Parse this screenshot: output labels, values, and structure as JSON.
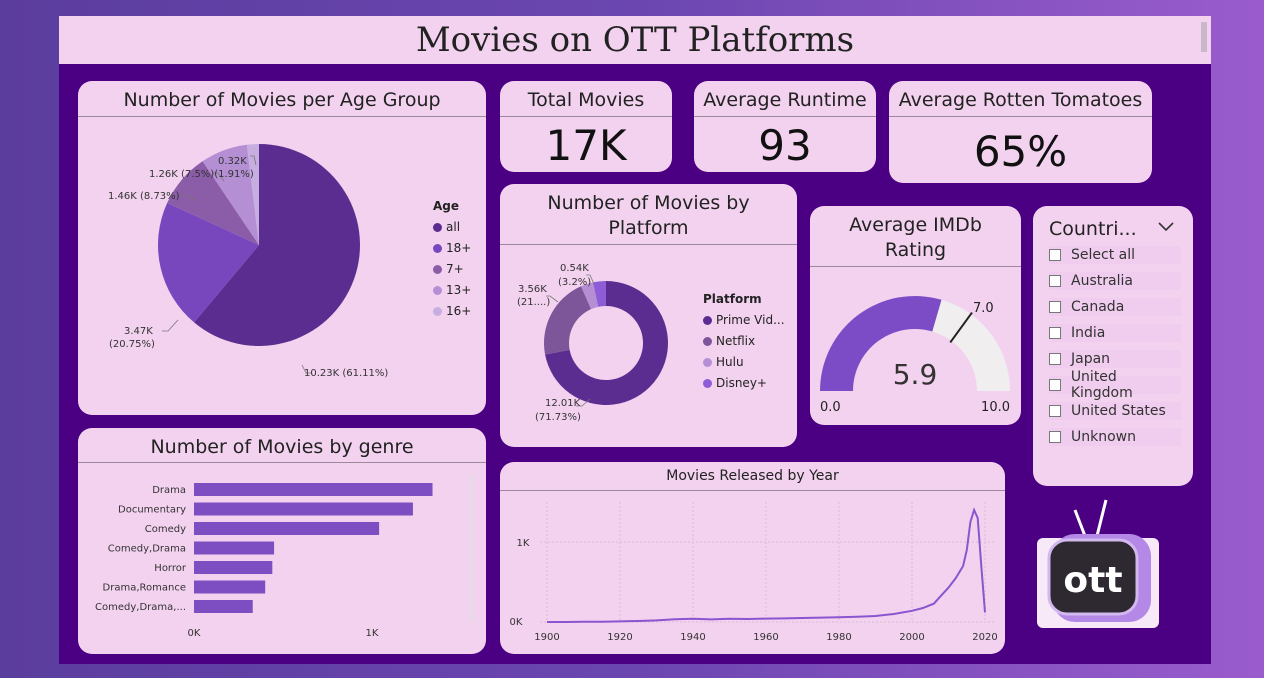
{
  "title": "Movies on OTT Platforms",
  "colors": {
    "dark": "#5c2d91",
    "mid": "#7847bd",
    "light": "#b58fd3",
    "pale": "#c7aee0",
    "bar": "#7d4ec2",
    "line": "#8a55cf",
    "gauge_fill": "#7c4bc6",
    "gauge_bg": "#f1eef0"
  },
  "kpis": {
    "total_movies": {
      "label": "Total Movies",
      "value": "17K"
    },
    "average_runtime": {
      "label": "Average Runtime",
      "value": "93"
    },
    "average_rotten_tomatoes": {
      "label": "Average Rotten Tomatoes",
      "value": "65%"
    }
  },
  "age_pie": {
    "title": "Number of Movies per Age Group",
    "legend_title": "Age",
    "legend": [
      "all",
      "18+",
      "7+",
      "13+",
      "16+"
    ],
    "labels": [
      "10.23K (61.11%)",
      "3.47K",
      "(20.75%)",
      "1.46K (8.73%)",
      "1.26K (7.5%)(1.91%)",
      "0.32K"
    ]
  },
  "platform_donut": {
    "title_line1": "Number of Movies by",
    "title_line2": "Platform",
    "legend_title": "Platform",
    "legend": [
      "Prime Vid...",
      "Netflix",
      "Hulu",
      "Disney+"
    ],
    "labels": [
      "12.01K",
      "(71.73%)",
      "3.56K",
      "(21....)",
      "0.54K",
      "(3.2%)"
    ]
  },
  "imdb": {
    "title_line1": "Average IMDb",
    "title_line2": "Rating",
    "value_label": "5.9",
    "min_label": "0.0",
    "max_label": "10.0",
    "target_label": "7.0"
  },
  "countries": {
    "title": "Countri...",
    "items": [
      "Select all",
      "Australia",
      "Canada",
      "India",
      "Japan",
      "United Kingdom",
      "United States",
      "Unknown"
    ]
  },
  "genre": {
    "title": "Number of Movies by genre",
    "x_ticks": [
      "0K",
      "1K"
    ]
  },
  "year": {
    "title": "Movies Released by Year",
    "x_ticks": [
      "1900",
      "1920",
      "1940",
      "1960",
      "1980",
      "2000",
      "2020"
    ],
    "y_ticks": [
      "0K",
      "1K"
    ]
  },
  "logo": {
    "text": "ott"
  },
  "chart_data": [
    {
      "type": "pie",
      "title": "Number of Movies per Age Group",
      "categories": [
        "all",
        "18+",
        "7+",
        "13+",
        "16+"
      ],
      "values": [
        10230,
        3470,
        1460,
        1260,
        320
      ],
      "percents": [
        61.11,
        20.75,
        8.73,
        7.5,
        1.91
      ],
      "legend_title": "Age",
      "legend": "right"
    },
    {
      "type": "pie",
      "title": "Number of Movies by Platform",
      "categories": [
        "Prime Vid...",
        "Netflix",
        "Hulu",
        "Disney+"
      ],
      "values": [
        12010,
        3560,
        540,
        560
      ],
      "percents": [
        71.73,
        21.3,
        3.2,
        3.4
      ],
      "legend_title": "Platform",
      "legend": "right"
    },
    {
      "type": "bar",
      "title": "Number of Movies by genre",
      "orientation": "horizontal",
      "categories": [
        "Drama",
        "Documentary",
        "Comedy",
        "Comedy,Drama",
        "Horror",
        "Drama,Romance",
        "Comedy,Drama,..."
      ],
      "values": [
        1340,
        1230,
        1040,
        450,
        440,
        400,
        330
      ],
      "xlim": [
        0,
        1450
      ]
    },
    {
      "type": "line",
      "title": "Movies Released by Year",
      "x": [
        1900,
        1905,
        1910,
        1915,
        1920,
        1925,
        1930,
        1935,
        1940,
        1945,
        1950,
        1955,
        1960,
        1965,
        1970,
        1975,
        1980,
        1985,
        1990,
        1995,
        2000,
        2003,
        2006,
        2008,
        2010,
        2012,
        2014,
        2015,
        2016,
        2017,
        2018,
        2019,
        2020
      ],
      "y": [
        0,
        0,
        2,
        3,
        8,
        12,
        20,
        35,
        40,
        32,
        40,
        38,
        42,
        45,
        50,
        55,
        60,
        65,
        75,
        100,
        140,
        175,
        230,
        330,
        430,
        550,
        700,
        900,
        1250,
        1400,
        1300,
        700,
        120
      ],
      "xlim": [
        1900,
        2022
      ],
      "ylim": [
        0,
        1400
      ],
      "x_ticks": [
        1900,
        1920,
        1940,
        1960,
        1980,
        2000,
        2020
      ],
      "y_ticks": [
        "0K",
        "1K"
      ]
    },
    {
      "type": "gauge",
      "title": "Average IMDb Rating",
      "value": 5.9,
      "min": 0.0,
      "max": 10.0,
      "target": 7.0
    }
  ]
}
